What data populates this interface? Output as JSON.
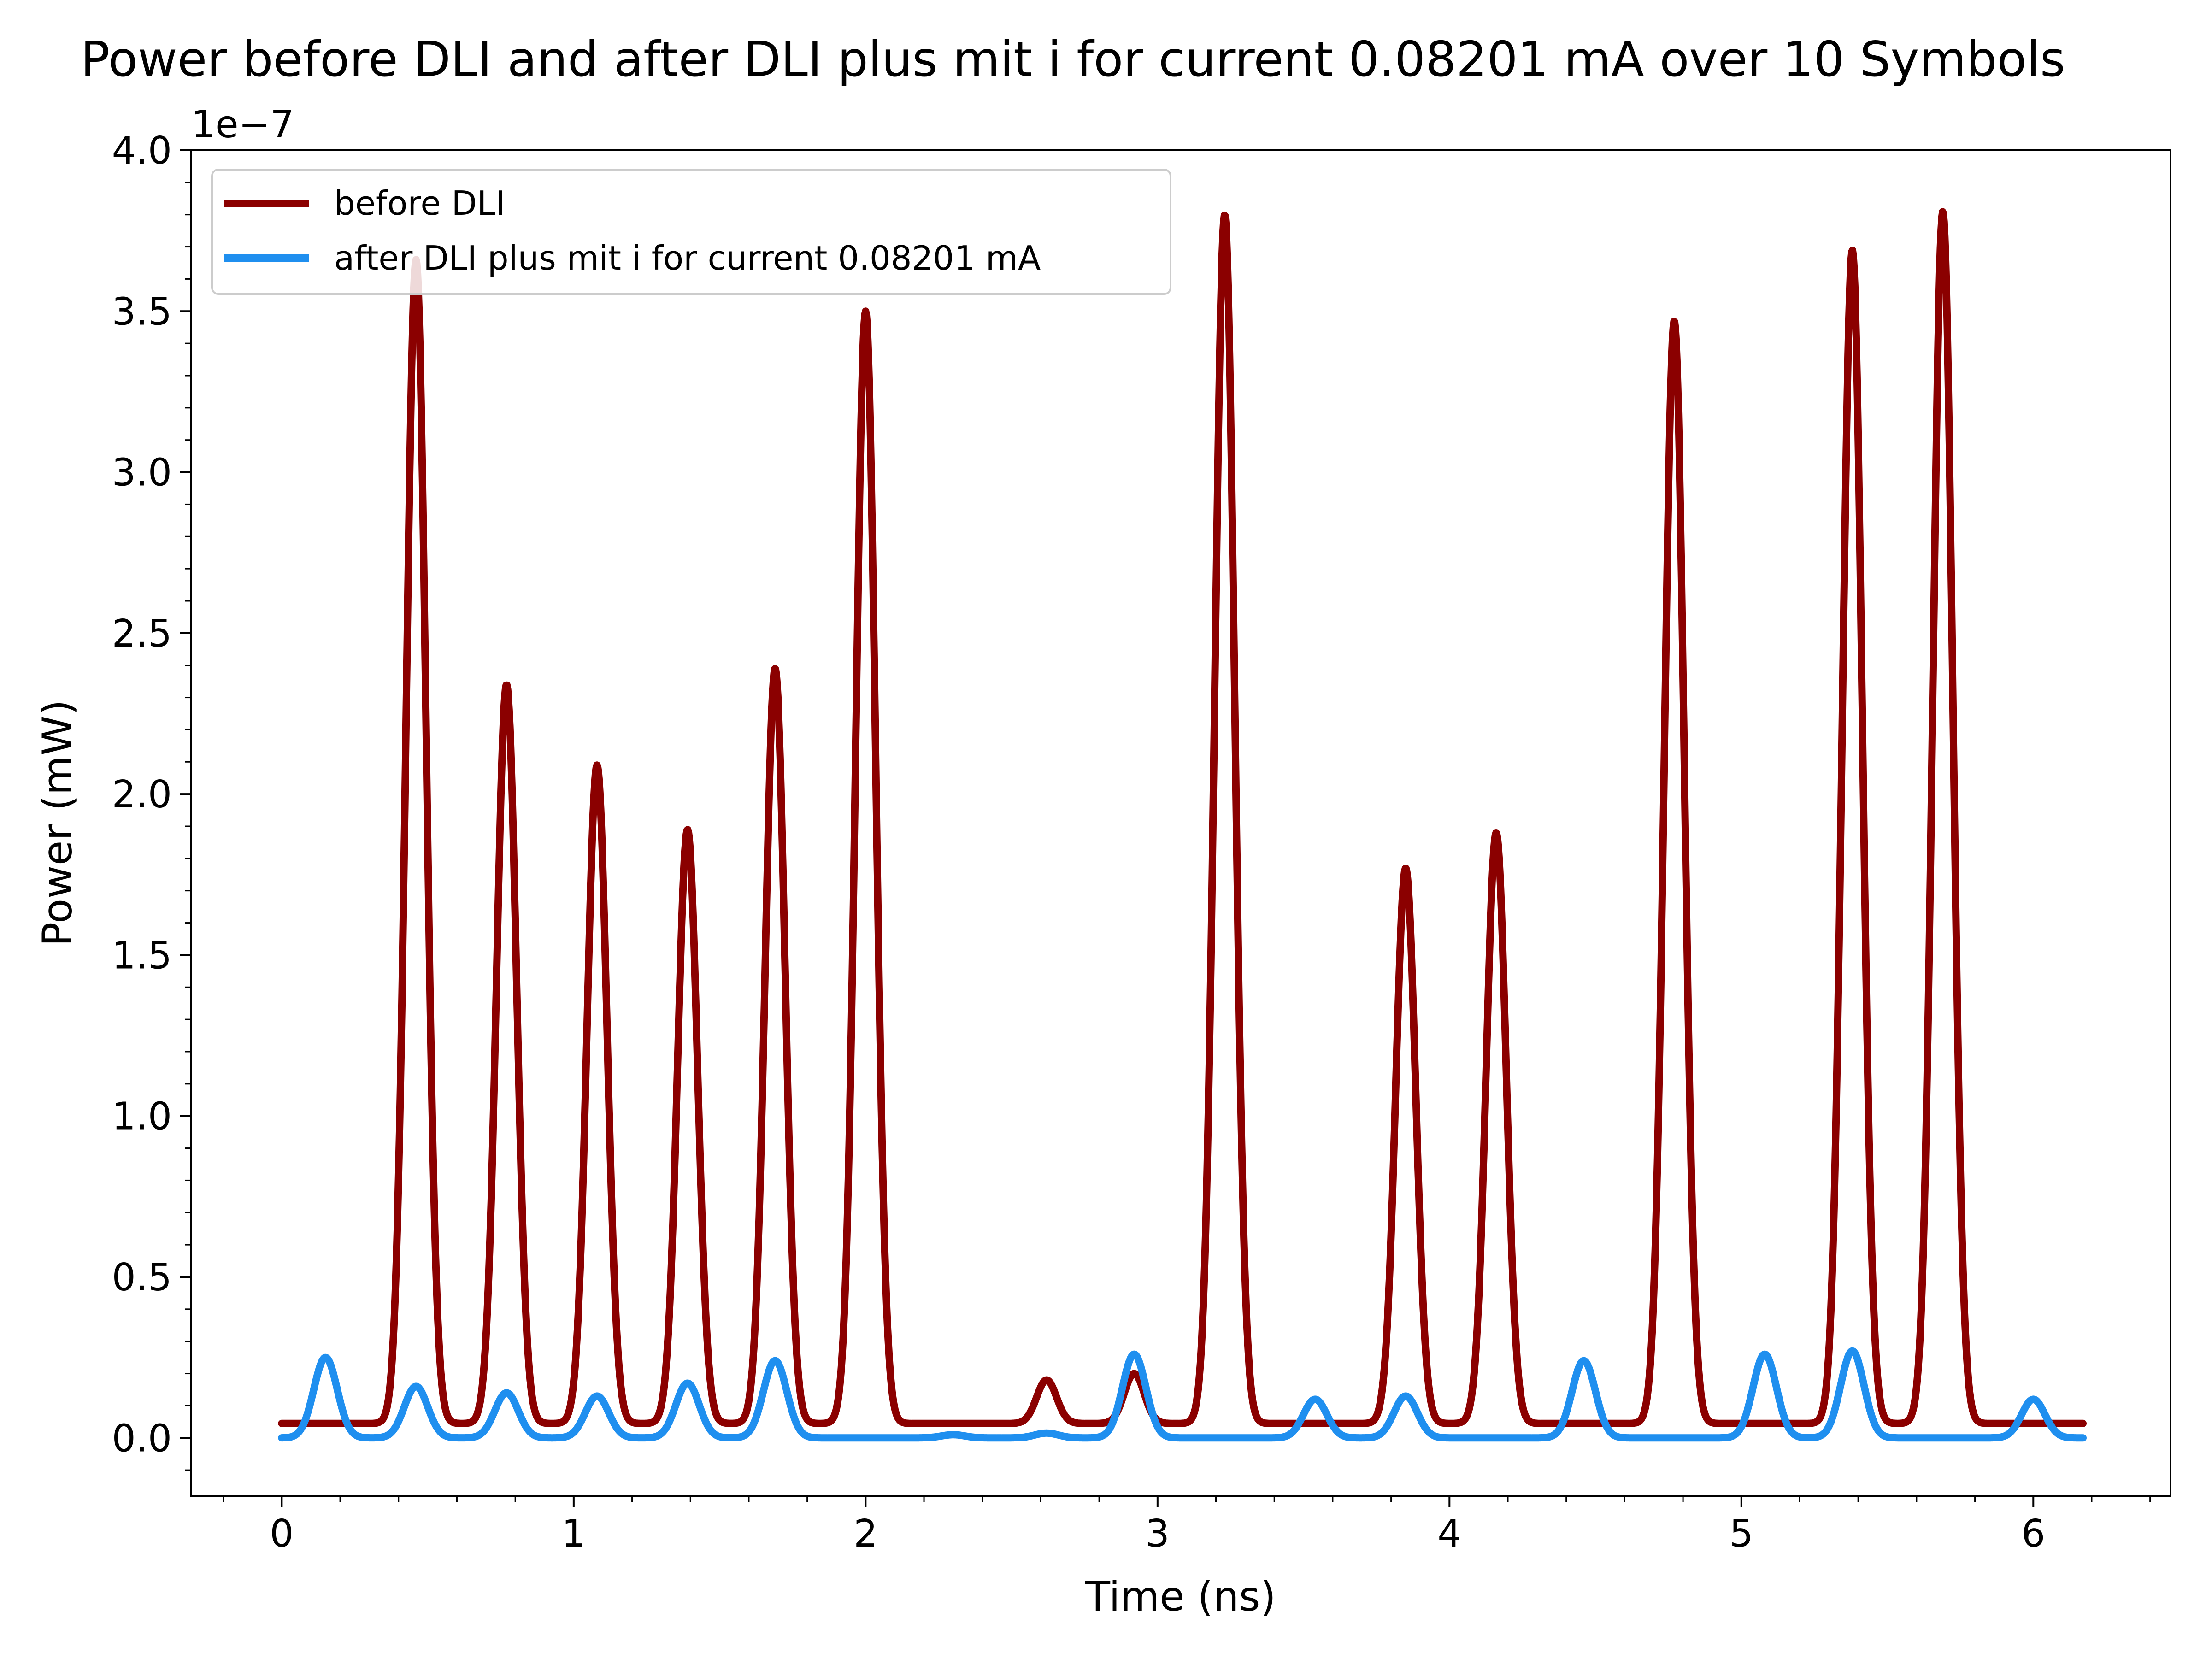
{
  "chart_data": {
    "type": "line",
    "title": "Power before DLI and after DLI plus mit i for current 0.08201 mA over 10 Symbols",
    "xlabel": "Time (ns)",
    "ylabel": "Power (mW)",
    "y_offset_label": "1e−7",
    "y_scale_exponent": -7,
    "xlim": [
      -0.31,
      6.47
    ],
    "ylim": [
      -1.8e-08,
      4e-07
    ],
    "x_ticks": [
      0,
      1,
      2,
      3,
      4,
      5,
      6
    ],
    "x_tick_labels": [
      "0",
      "1",
      "2",
      "3",
      "4",
      "5",
      "6"
    ],
    "y_ticks": [
      0,
      5e-08,
      1e-07,
      1.5e-07,
      2e-07,
      2.5e-07,
      3e-07,
      3.5e-07,
      4e-07
    ],
    "y_tick_labels": [
      "0.0",
      "0.5",
      "1.0",
      "1.5",
      "2.0",
      "2.5",
      "3.0",
      "3.5",
      "4.0"
    ],
    "grid": false,
    "legend_position": "top-left",
    "x_range": [
      0,
      6.17
    ],
    "series": [
      {
        "name": "before DLI",
        "color": "#8b0000",
        "baseline": 4.5e-09,
        "pulse_width_ns": 0.034,
        "peaks": [
          {
            "x": 0.46,
            "y": 3.66e-07
          },
          {
            "x": 0.77,
            "y": 2.34e-07
          },
          {
            "x": 1.08,
            "y": 2.09e-07
          },
          {
            "x": 1.39,
            "y": 1.89e-07
          },
          {
            "x": 1.69,
            "y": 2.39e-07
          },
          {
            "x": 2.0,
            "y": 3.5e-07
          },
          {
            "x": 2.62,
            "y": 1.8e-08
          },
          {
            "x": 2.92,
            "y": 2e-08
          },
          {
            "x": 3.23,
            "y": 3.8e-07
          },
          {
            "x": 3.85,
            "y": 1.77e-07
          },
          {
            "x": 4.16,
            "y": 1.88e-07
          },
          {
            "x": 4.77,
            "y": 3.47e-07
          },
          {
            "x": 5.38,
            "y": 3.69e-07
          },
          {
            "x": 5.69,
            "y": 3.81e-07
          }
        ]
      },
      {
        "name": "after DLI plus mit i for current 0.08201 mA",
        "color": "#1f8fef",
        "baseline": 0,
        "pulse_width_ns": 0.04,
        "peaks": [
          {
            "x": 0.15,
            "y": 2.5e-08
          },
          {
            "x": 0.46,
            "y": 1.6e-08
          },
          {
            "x": 0.77,
            "y": 1.4e-08
          },
          {
            "x": 1.08,
            "y": 1.3e-08
          },
          {
            "x": 1.39,
            "y": 1.7e-08
          },
          {
            "x": 1.69,
            "y": 2.4e-08
          },
          {
            "x": 2.3,
            "y": 1e-09
          },
          {
            "x": 2.62,
            "y": 1.5e-09
          },
          {
            "x": 2.92,
            "y": 2.6e-08
          },
          {
            "x": 3.54,
            "y": 1.2e-08
          },
          {
            "x": 3.85,
            "y": 1.3e-08
          },
          {
            "x": 4.46,
            "y": 2.4e-08
          },
          {
            "x": 5.08,
            "y": 2.6e-08
          },
          {
            "x": 5.38,
            "y": 2.7e-08
          },
          {
            "x": 6.0,
            "y": 1.2e-08
          }
        ]
      }
    ]
  }
}
